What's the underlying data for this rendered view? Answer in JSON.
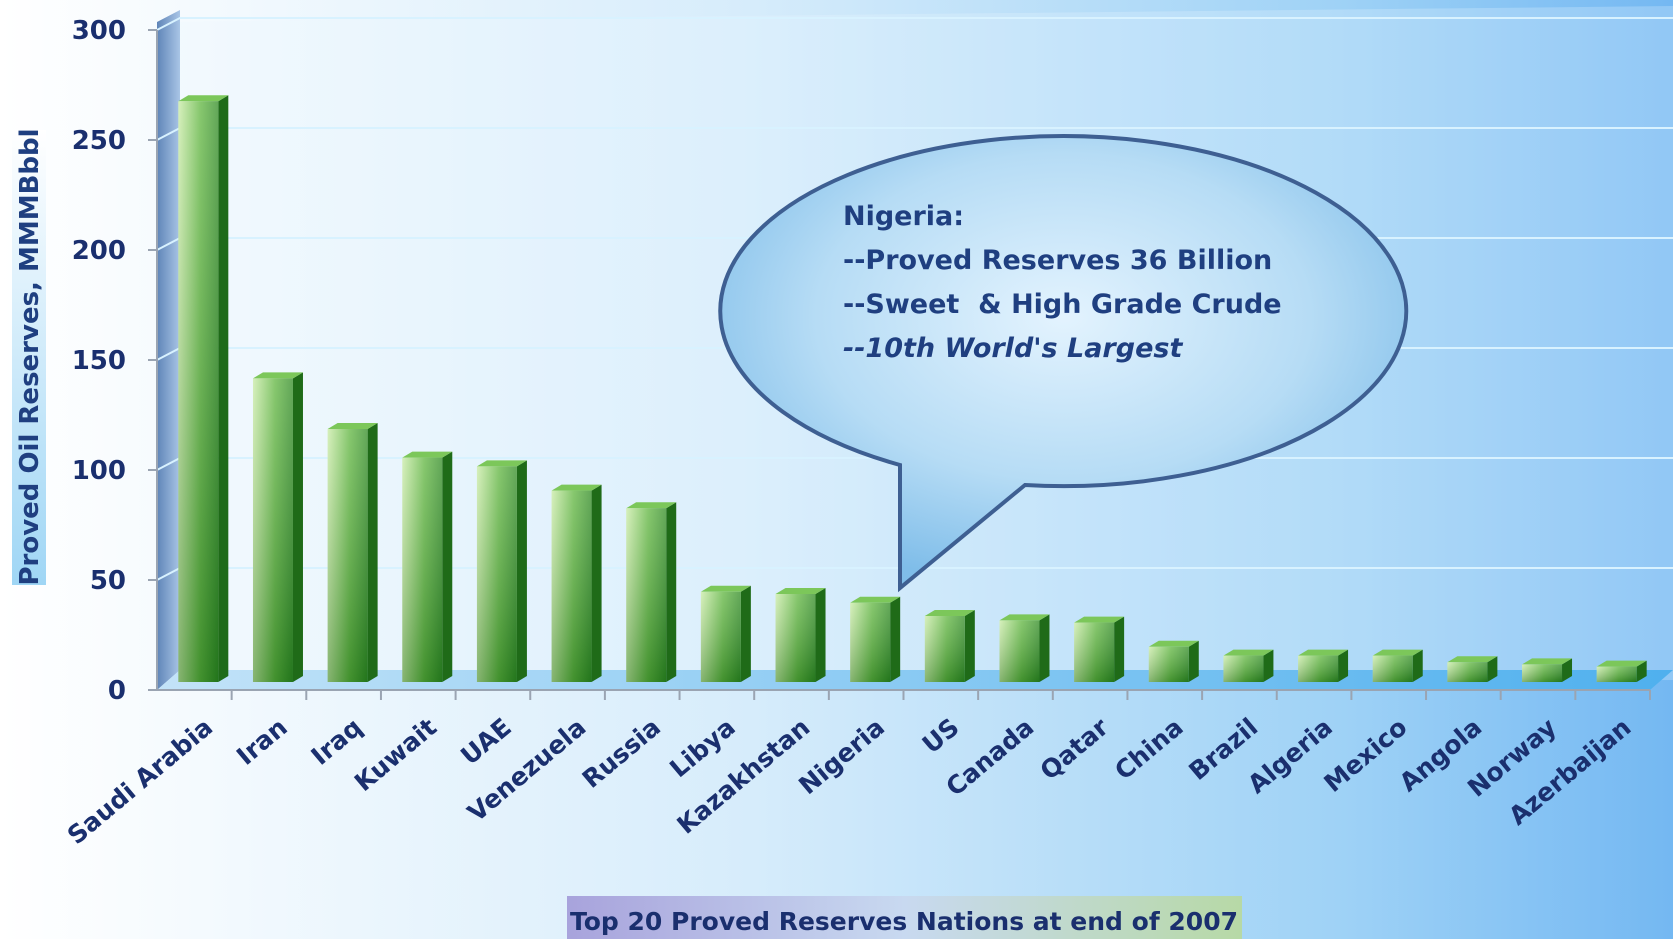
{
  "chart_data": {
    "type": "bar",
    "xlabel": "Top 20 Proved Reserves Nations at end of 2007",
    "ylabel": "Proved Oil Reserves, MMMBbbl",
    "ylim": [
      0,
      300
    ],
    "yticks": [
      "0",
      "50",
      "100",
      "150",
      "200",
      "250",
      "300"
    ],
    "grid": true,
    "categories": [
      "Saudi Arabia",
      "Iran",
      "Iraq",
      "Kuwait",
      "UAE",
      "Venezuela",
      "Russia",
      "Libya",
      "Kazakhstan",
      "Nigeria",
      "US",
      "Canada",
      "Qatar",
      "China",
      "Brazil",
      "Algeria",
      "Mexico",
      "Angola",
      "Norway",
      "Azerbaijan"
    ],
    "values": [
      264,
      138,
      115,
      102,
      98,
      87,
      79,
      41,
      40,
      36,
      30,
      28,
      27,
      16,
      12,
      12,
      12,
      9,
      8,
      7
    ],
    "colors": {
      "bar": "#3f9a2f",
      "grid": "#d8f2ff",
      "text": "#1a2f6e",
      "callout_fill": "#8ac6ee",
      "callout_stroke": "#3e5f92"
    },
    "annotation": {
      "target_category": "Nigeria",
      "lines": [
        "Nigeria:",
        "--Proved Reserves 36 Billion",
        "--Sweet  & High Grade Crude",
        "--10th World's Largest"
      ]
    }
  }
}
